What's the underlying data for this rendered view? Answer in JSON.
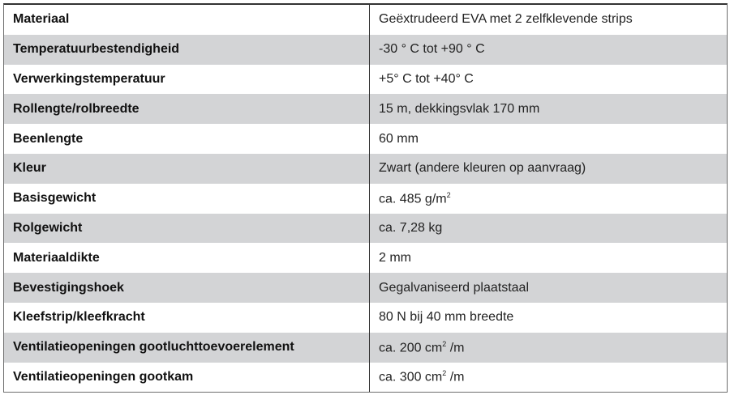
{
  "rows": [
    {
      "label": "Materiaal",
      "value": "Geëxtrudeerd EVA met 2 zelfklevende strips"
    },
    {
      "label": "Temperatuurbestendigheid",
      "value": "-30 ° C tot +90 ° C"
    },
    {
      "label": "Verwerkingstemperatuur",
      "value": "+5° C tot +40° C"
    },
    {
      "label": "Rollengte/rolbreedte",
      "value": "15 m, dekkingsvlak 170 mm"
    },
    {
      "label": "Beenlengte",
      "value": "60 mm"
    },
    {
      "label": "Kleur",
      "value": "Zwart (andere kleuren op aanvraag)"
    },
    {
      "label": "Basisgewicht",
      "value": "ca. 485 g/m",
      "sup": "2",
      "suffix": ""
    },
    {
      "label": "Rolgewicht",
      "value": "ca. 7,28 kg"
    },
    {
      "label": "Materiaaldikte",
      "value": "2 mm"
    },
    {
      "label": "Bevestigingshoek",
      "value": "Gegalvaniseerd plaatstaal"
    },
    {
      "label": "Kleefstrip/kleefkracht",
      "value": "80 N bij 40 mm breedte"
    },
    {
      "label": "Ventilatieopeningen gootluchttoevoerelement",
      "value": "ca. 200 cm",
      "sup": "2",
      "suffix": " /m"
    },
    {
      "label": "Ventilatieopeningen gootkam",
      "value": "ca. 300 cm",
      "sup": "2",
      "suffix": " /m"
    }
  ],
  "colors": {
    "alt_row": "#d3d4d6",
    "border": "#333333"
  }
}
